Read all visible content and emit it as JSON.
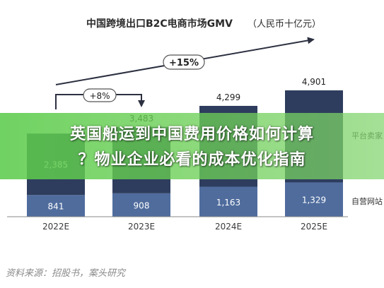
{
  "colors": {
    "dark_navy": "#2e3d5e",
    "mid_blue": "#4f6c9d",
    "arrow_dark": "#2c3040",
    "banner_green": "#5ccc4c",
    "pill_stroke": "#555555"
  },
  "chart_data": {
    "type": "bar",
    "stacked": true,
    "title": "中国跨境出口B2C电商市场GMV",
    "title_unit": "（人民币十亿元）",
    "categories": [
      "2022E",
      "2023E",
      "2024E",
      "2025E"
    ],
    "series": [
      {
        "name": "自营网站",
        "values": [
          841,
          908,
          1163,
          1329
        ],
        "labels": [
          "841",
          "908",
          "1,163",
          "1,329"
        ]
      },
      {
        "name": "平台卖家",
        "values": [
          2385,
          2575,
          3136,
          3572
        ],
        "visible_labels": [
          "2,385",
          "",
          "",
          ""
        ]
      }
    ],
    "totals": [
      3226,
      3483,
      4299,
      4901
    ],
    "total_labels": [
      "",
      "3,483",
      "4,299",
      "4,901"
    ],
    "annotations": [
      {
        "text": "+8%",
        "from": "2022E",
        "to": "2023E"
      },
      {
        "text": "+15%",
        "from": "2022E",
        "to": "2025E"
      }
    ],
    "ylim": [
      0,
      5200
    ],
    "grid": false,
    "legend": "right"
  },
  "overlay": {
    "line1": "英国船运到中国费用价格如何计算",
    "line2": "？物业企业必看的成本优化指南"
  },
  "source_text": "资料来源：招股书，案头研究"
}
